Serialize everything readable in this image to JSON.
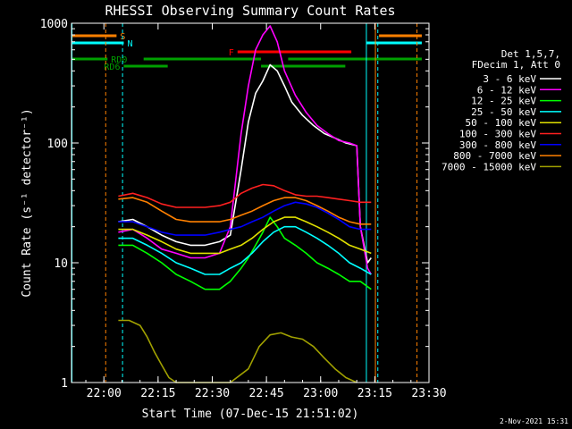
{
  "chart_data": {
    "type": "line",
    "title": "RHESSI Observing Summary Count Rates",
    "xlabel": "Start Time (07-Dec-15 21:51:02)",
    "ylabel": "Count Rate (s⁻¹ detector⁻¹)",
    "yscale": "log",
    "ylim": [
      1,
      1000
    ],
    "xlim": [
      "21:51:02",
      "23:30:00"
    ],
    "x_ticks": [
      "22:00",
      "22:15",
      "22:30",
      "22:45",
      "23:00",
      "23:15",
      "23:30"
    ],
    "y_ticks": [
      "1",
      "10",
      "100",
      "1000"
    ],
    "legend": {
      "header": [
        "Det 1,5,7,",
        "FDecim 1, Att 0"
      ],
      "position": "right"
    },
    "series": [
      {
        "name": "3 - 6 keV",
        "color": "#ffffff",
        "points": [
          [
            "22:04",
            22
          ],
          [
            "22:08",
            23
          ],
          [
            "22:12",
            20
          ],
          [
            "22:16",
            17
          ],
          [
            "22:20",
            15
          ],
          [
            "22:24",
            14
          ],
          [
            "22:28",
            14
          ],
          [
            "22:32",
            15
          ],
          [
            "22:35",
            17
          ],
          [
            "22:38",
            60
          ],
          [
            "22:40",
            150
          ],
          [
            "22:42",
            260
          ],
          [
            "22:44",
            330
          ],
          [
            "22:46",
            450
          ],
          [
            "22:48",
            400
          ],
          [
            "22:50",
            300
          ],
          [
            "22:52",
            220
          ],
          [
            "22:55",
            170
          ],
          [
            "22:58",
            140
          ],
          [
            "23:01",
            120
          ],
          [
            "23:04",
            110
          ],
          [
            "23:07",
            100
          ],
          [
            "23:10",
            95
          ],
          [
            "23:11",
            20
          ],
          [
            "23:13",
            10
          ],
          [
            "23:14",
            11
          ]
        ]
      },
      {
        "name": "6 - 12 keV",
        "color": "#ff00ff",
        "points": [
          [
            "22:04",
            18
          ],
          [
            "22:08",
            19
          ],
          [
            "22:12",
            16
          ],
          [
            "22:16",
            13
          ],
          [
            "22:20",
            12
          ],
          [
            "22:24",
            11
          ],
          [
            "22:28",
            11
          ],
          [
            "22:32",
            12
          ],
          [
            "22:35",
            20
          ],
          [
            "22:38",
            120
          ],
          [
            "22:40",
            300
          ],
          [
            "22:42",
            600
          ],
          [
            "22:44",
            800
          ],
          [
            "22:46",
            950
          ],
          [
            "22:48",
            700
          ],
          [
            "22:50",
            400
          ],
          [
            "22:53",
            250
          ],
          [
            "22:56",
            180
          ],
          [
            "22:59",
            140
          ],
          [
            "23:02",
            120
          ],
          [
            "23:05",
            105
          ],
          [
            "23:08",
            100
          ],
          [
            "23:10",
            95
          ],
          [
            "23:11",
            20
          ],
          [
            "23:13",
            9
          ],
          [
            "23:14",
            8
          ]
        ]
      },
      {
        "name": "12 - 25 keV",
        "color": "#00ff00",
        "points": [
          [
            "22:04",
            14
          ],
          [
            "22:08",
            14
          ],
          [
            "22:12",
            12
          ],
          [
            "22:16",
            10
          ],
          [
            "22:20",
            8
          ],
          [
            "22:24",
            7
          ],
          [
            "22:28",
            6
          ],
          [
            "22:32",
            6
          ],
          [
            "22:35",
            7
          ],
          [
            "22:38",
            9
          ],
          [
            "22:40",
            11
          ],
          [
            "22:42",
            14
          ],
          [
            "22:44",
            18
          ],
          [
            "22:46",
            24
          ],
          [
            "22:48",
            20
          ],
          [
            "22:50",
            16
          ],
          [
            "22:53",
            14
          ],
          [
            "22:56",
            12
          ],
          [
            "22:59",
            10
          ],
          [
            "23:02",
            9
          ],
          [
            "23:05",
            8
          ],
          [
            "23:08",
            7
          ],
          [
            "23:11",
            7
          ],
          [
            "23:14",
            6
          ]
        ]
      },
      {
        "name": "25 - 50 keV",
        "color": "#00ffff",
        "points": [
          [
            "22:04",
            16
          ],
          [
            "22:08",
            16
          ],
          [
            "22:12",
            14
          ],
          [
            "22:16",
            12
          ],
          [
            "22:20",
            10
          ],
          [
            "22:24",
            9
          ],
          [
            "22:28",
            8
          ],
          [
            "22:32",
            8
          ],
          [
            "22:35",
            9
          ],
          [
            "22:38",
            10
          ],
          [
            "22:41",
            12
          ],
          [
            "22:44",
            15
          ],
          [
            "22:47",
            18
          ],
          [
            "22:50",
            20
          ],
          [
            "22:53",
            20
          ],
          [
            "22:56",
            18
          ],
          [
            "22:59",
            16
          ],
          [
            "23:02",
            14
          ],
          [
            "23:05",
            12
          ],
          [
            "23:08",
            10
          ],
          [
            "23:11",
            9
          ],
          [
            "23:14",
            8
          ]
        ]
      },
      {
        "name": "50 - 100 keV",
        "color": "#e0e000",
        "points": [
          [
            "22:04",
            19
          ],
          [
            "22:08",
            19
          ],
          [
            "22:12",
            17
          ],
          [
            "22:16",
            15
          ],
          [
            "22:20",
            13
          ],
          [
            "22:24",
            12
          ],
          [
            "22:28",
            12
          ],
          [
            "22:32",
            12
          ],
          [
            "22:35",
            13
          ],
          [
            "22:38",
            14
          ],
          [
            "22:41",
            16
          ],
          [
            "22:44",
            19
          ],
          [
            "22:47",
            22
          ],
          [
            "22:50",
            24
          ],
          [
            "22:53",
            24
          ],
          [
            "22:56",
            22
          ],
          [
            "22:59",
            20
          ],
          [
            "23:02",
            18
          ],
          [
            "23:05",
            16
          ],
          [
            "23:08",
            14
          ],
          [
            "23:11",
            13
          ],
          [
            "23:14",
            12
          ]
        ]
      },
      {
        "name": "100 - 300 keV",
        "color": "#ff2020",
        "points": [
          [
            "22:04",
            36
          ],
          [
            "22:08",
            38
          ],
          [
            "22:12",
            35
          ],
          [
            "22:16",
            31
          ],
          [
            "22:20",
            29
          ],
          [
            "22:24",
            29
          ],
          [
            "22:28",
            29
          ],
          [
            "22:32",
            30
          ],
          [
            "22:35",
            32
          ],
          [
            "22:38",
            38
          ],
          [
            "22:41",
            42
          ],
          [
            "22:44",
            45
          ],
          [
            "22:47",
            44
          ],
          [
            "22:50",
            40
          ],
          [
            "22:53",
            37
          ],
          [
            "22:56",
            36
          ],
          [
            "22:59",
            36
          ],
          [
            "23:02",
            35
          ],
          [
            "23:05",
            34
          ],
          [
            "23:08",
            33
          ],
          [
            "23:11",
            32
          ],
          [
            "23:14",
            32
          ]
        ]
      },
      {
        "name": "300 - 800 keV",
        "color": "#0000ff",
        "points": [
          [
            "22:04",
            22
          ],
          [
            "22:08",
            22
          ],
          [
            "22:12",
            20
          ],
          [
            "22:16",
            18
          ],
          [
            "22:20",
            17
          ],
          [
            "22:24",
            17
          ],
          [
            "22:28",
            17
          ],
          [
            "22:32",
            18
          ],
          [
            "22:35",
            19
          ],
          [
            "22:38",
            20
          ],
          [
            "22:41",
            22
          ],
          [
            "22:44",
            24
          ],
          [
            "22:47",
            27
          ],
          [
            "22:50",
            30
          ],
          [
            "22:53",
            32
          ],
          [
            "22:56",
            31
          ],
          [
            "22:59",
            29
          ],
          [
            "23:02",
            26
          ],
          [
            "23:05",
            23
          ],
          [
            "23:08",
            20
          ],
          [
            "23:11",
            19
          ],
          [
            "23:14",
            19
          ]
        ]
      },
      {
        "name": "800 - 7000 keV",
        "color": "#ff8000",
        "points": [
          [
            "22:04",
            34
          ],
          [
            "22:08",
            35
          ],
          [
            "22:12",
            32
          ],
          [
            "22:16",
            27
          ],
          [
            "22:20",
            23
          ],
          [
            "22:24",
            22
          ],
          [
            "22:28",
            22
          ],
          [
            "22:32",
            22
          ],
          [
            "22:35",
            23
          ],
          [
            "22:38",
            25
          ],
          [
            "22:41",
            27
          ],
          [
            "22:44",
            30
          ],
          [
            "22:47",
            33
          ],
          [
            "22:50",
            35
          ],
          [
            "22:53",
            35
          ],
          [
            "22:56",
            33
          ],
          [
            "22:59",
            30
          ],
          [
            "23:02",
            27
          ],
          [
            "23:05",
            24
          ],
          [
            "23:08",
            22
          ],
          [
            "23:11",
            21
          ],
          [
            "23:14",
            21
          ]
        ]
      },
      {
        "name": "7000 - 15000 keV",
        "color": "#a0a000",
        "points": [
          [
            "22:04",
            3.3
          ],
          [
            "22:07",
            3.3
          ],
          [
            "22:10",
            3.0
          ],
          [
            "22:12",
            2.4
          ],
          [
            "22:14",
            1.8
          ],
          [
            "22:16",
            1.4
          ],
          [
            "22:18",
            1.1
          ],
          [
            "22:20",
            1.0
          ],
          [
            "22:35",
            1.0
          ],
          [
            "22:40",
            1.3
          ],
          [
            "22:43",
            2.0
          ],
          [
            "22:46",
            2.5
          ],
          [
            "22:49",
            2.6
          ],
          [
            "22:52",
            2.4
          ],
          [
            "22:55",
            2.3
          ],
          [
            "22:58",
            2.0
          ],
          [
            "23:01",
            1.6
          ],
          [
            "23:04",
            1.3
          ],
          [
            "23:07",
            1.1
          ],
          [
            "23:10",
            1.0
          ]
        ]
      }
    ],
    "vertical_markers": [
      {
        "time": "21:51:10",
        "color": "#00ffff",
        "style": "solid"
      },
      {
        "time": "22:00:30",
        "color": "#ff8000",
        "style": "dashed"
      },
      {
        "time": "22:05:10",
        "color": "#00ffff",
        "style": "dashed"
      },
      {
        "time": "23:12:40",
        "color": "#00ffff",
        "style": "solid"
      },
      {
        "time": "23:15:10",
        "color": "#ff8000",
        "style": "solid"
      },
      {
        "time": "23:15:50",
        "color": "#00ffff",
        "style": "dashed"
      },
      {
        "time": "23:26:40",
        "color": "#ff8000",
        "style": "dashed"
      }
    ],
    "flag_bars": [
      {
        "label": "S",
        "color": "#ff8000",
        "segments": [
          [
            "21:51:02",
            "22:03:30"
          ],
          [
            "23:16:10",
            "23:28:00"
          ]
        ]
      },
      {
        "label": "N",
        "color": "#00ffff",
        "segments": [
          [
            "21:51:02",
            "22:05:30"
          ],
          [
            "23:12:40",
            "23:28:00"
          ]
        ]
      },
      {
        "label": "F",
        "color": "#ff0000",
        "segments": [
          [
            "22:37:00",
            "23:08:30"
          ]
        ]
      },
      {
        "label": "RD0",
        "color": "#00a000",
        "segments": [
          [
            "21:51:02",
            "22:01:00"
          ],
          [
            "22:11:00",
            "22:43:30"
          ],
          [
            "22:51:00",
            "23:28:00"
          ]
        ]
      },
      {
        "label": "RD6",
        "color": "#00a000",
        "segments": [
          [
            "22:05:30",
            "22:17:40"
          ],
          [
            "22:43:30",
            "23:06:50"
          ]
        ]
      }
    ],
    "footer_timestamp": "2-Nov-2021 15:31"
  }
}
